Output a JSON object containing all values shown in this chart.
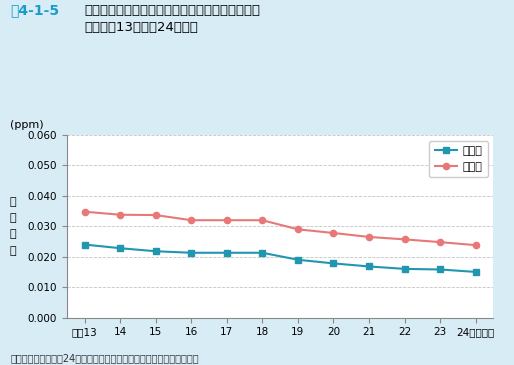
{
  "title_prefix": "図4-1-5",
  "title_main": "対策地域における二酸化窒素濃度の年平均値の推\n移（平成13年度〜24年度）",
  "unit_label": "(ppm)",
  "ylabel": "年\n平\n均\n値",
  "x_values": [
    13,
    14,
    15,
    16,
    17,
    18,
    19,
    20,
    21,
    22,
    23,
    24
  ],
  "x_tick_labels": [
    "平成13",
    "14",
    "15",
    "16",
    "17",
    "18",
    "19",
    "20",
    "21",
    "22",
    "23",
    "24（年度）"
  ],
  "ippan_values": [
    0.024,
    0.0228,
    0.0218,
    0.0213,
    0.0213,
    0.0213,
    0.019,
    0.0178,
    0.0168,
    0.016,
    0.0158,
    0.015
  ],
  "jihai_values": [
    0.0348,
    0.0338,
    0.0337,
    0.032,
    0.032,
    0.032,
    0.029,
    0.0278,
    0.0265,
    0.0257,
    0.0248,
    0.0238
  ],
  "ippan_color": "#2196b0",
  "jihai_color": "#e87878",
  "ylim": [
    0.0,
    0.06
  ],
  "yticks": [
    0.0,
    0.01,
    0.02,
    0.03,
    0.04,
    0.05,
    0.06
  ],
  "legend_ippan": "一般局",
  "legend_jihai": "自排局",
  "source_text": "資料：環境省「平成24年度大気汚染状況について（報道発表資料）」",
  "bg_color": "#d8ecf5",
  "plot_bg_color": "#ffffff",
  "title_color": "#000000",
  "title_prefix_color": "#1a9cc8",
  "grid_color": "#aaaaaa"
}
